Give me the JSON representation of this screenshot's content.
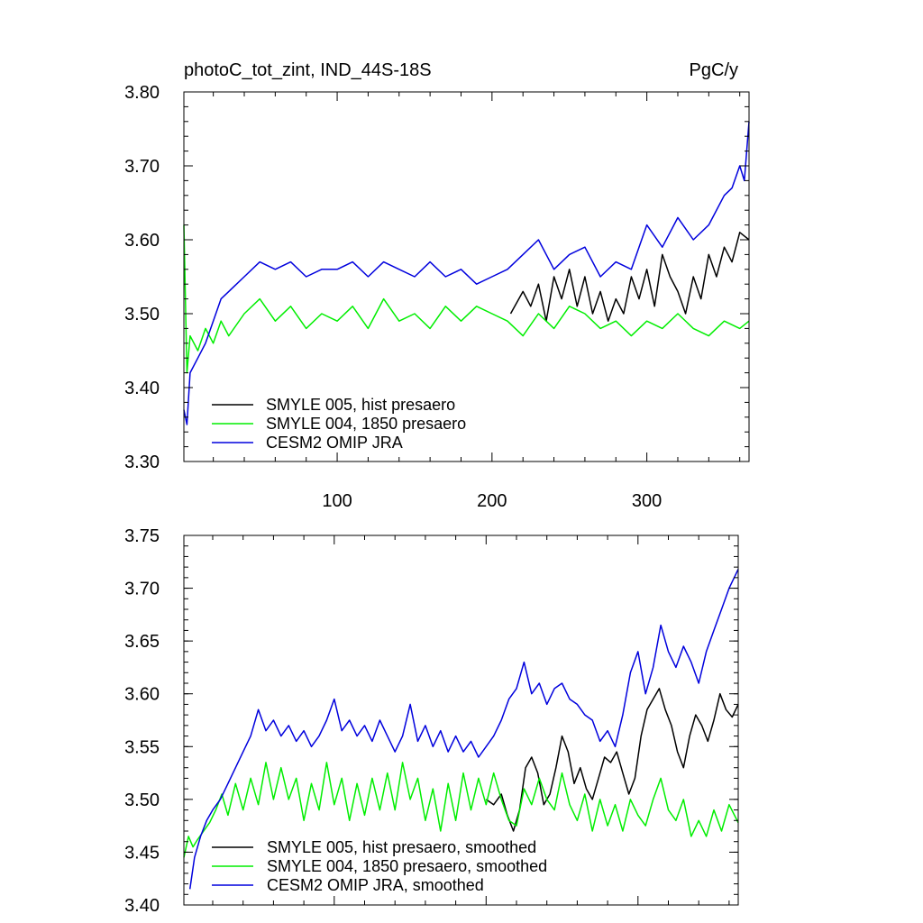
{
  "chart_data": [
    {
      "type": "line",
      "title": "photoC_tot_zint, IND_44S-18S",
      "units": "PgC/y",
      "xlim": [
        1,
        366
      ],
      "ylim": [
        3.3,
        3.8
      ],
      "yticks": [
        "3.30",
        "3.40",
        "3.50",
        "3.60",
        "3.70",
        "3.80"
      ],
      "xticks": [
        "100",
        "200",
        "300"
      ],
      "grid": false,
      "legend_position": "bottom-left",
      "series": [
        {
          "name": "SMYLE 005, hist presaero",
          "color": "#000000",
          "x": [
            212,
            220,
            225,
            230,
            235,
            240,
            245,
            250,
            255,
            260,
            265,
            270,
            275,
            280,
            285,
            290,
            295,
            300,
            305,
            310,
            315,
            320,
            325,
            330,
            335,
            340,
            345,
            350,
            355,
            360,
            366
          ],
          "y": [
            3.5,
            3.53,
            3.51,
            3.54,
            3.49,
            3.55,
            3.52,
            3.56,
            3.51,
            3.55,
            3.5,
            3.53,
            3.49,
            3.52,
            3.5,
            3.55,
            3.52,
            3.56,
            3.51,
            3.58,
            3.55,
            3.53,
            3.5,
            3.55,
            3.52,
            3.58,
            3.55,
            3.59,
            3.57,
            3.61,
            3.6
          ]
        },
        {
          "name": "SMYLE 004, 1850 presaero",
          "color": "#00ee00",
          "x": [
            1,
            3,
            5,
            10,
            15,
            20,
            25,
            30,
            40,
            50,
            60,
            70,
            80,
            90,
            100,
            110,
            120,
            130,
            140,
            150,
            160,
            170,
            180,
            190,
            200,
            210,
            220,
            230,
            240,
            250,
            260,
            270,
            280,
            290,
            300,
            310,
            320,
            330,
            340,
            350,
            360,
            366
          ],
          "y": [
            3.62,
            3.42,
            3.47,
            3.45,
            3.48,
            3.46,
            3.49,
            3.47,
            3.5,
            3.52,
            3.49,
            3.51,
            3.48,
            3.5,
            3.49,
            3.51,
            3.48,
            3.52,
            3.49,
            3.5,
            3.48,
            3.51,
            3.49,
            3.51,
            3.5,
            3.49,
            3.47,
            3.5,
            3.48,
            3.51,
            3.5,
            3.48,
            3.49,
            3.47,
            3.49,
            3.48,
            3.5,
            3.48,
            3.47,
            3.49,
            3.48,
            3.49
          ]
        },
        {
          "name": "CESM2 OMIP JRA",
          "color": "#0000dd",
          "x": [
            1,
            3,
            5,
            10,
            15,
            20,
            25,
            30,
            40,
            50,
            60,
            70,
            80,
            90,
            100,
            110,
            120,
            130,
            140,
            150,
            160,
            170,
            180,
            190,
            200,
            210,
            220,
            230,
            240,
            250,
            260,
            270,
            280,
            290,
            300,
            310,
            320,
            330,
            340,
            350,
            355,
            360,
            363,
            366
          ],
          "y": [
            3.37,
            3.35,
            3.42,
            3.44,
            3.46,
            3.49,
            3.52,
            3.53,
            3.55,
            3.57,
            3.56,
            3.57,
            3.55,
            3.56,
            3.56,
            3.57,
            3.55,
            3.57,
            3.56,
            3.55,
            3.57,
            3.55,
            3.56,
            3.54,
            3.55,
            3.56,
            3.58,
            3.6,
            3.56,
            3.58,
            3.59,
            3.55,
            3.57,
            3.56,
            3.62,
            3.59,
            3.63,
            3.6,
            3.62,
            3.66,
            3.67,
            3.7,
            3.68,
            3.76
          ]
        }
      ]
    },
    {
      "type": "line",
      "title": "",
      "units": "",
      "xlim": [
        1,
        366
      ],
      "ylim": [
        3.4,
        3.75
      ],
      "yticks": [
        "3.40",
        "3.45",
        "3.50",
        "3.55",
        "3.60",
        "3.65",
        "3.70",
        "3.75"
      ],
      "xticks": [],
      "grid": false,
      "legend_position": "bottom-left",
      "series": [
        {
          "name": "SMYLE 005, hist presaero, smoothed",
          "color": "#000000",
          "x": [
            200,
            205,
            210,
            214,
            218,
            222,
            226,
            230,
            234,
            238,
            242,
            246,
            250,
            254,
            258,
            262,
            266,
            270,
            274,
            278,
            282,
            286,
            290,
            294,
            298,
            302,
            306,
            310,
            314,
            318,
            322,
            326,
            330,
            334,
            338,
            342,
            346,
            350,
            354,
            358,
            362,
            366
          ],
          "y": [
            3.5,
            3.495,
            3.505,
            3.485,
            3.47,
            3.49,
            3.53,
            3.54,
            3.525,
            3.495,
            3.505,
            3.53,
            3.56,
            3.545,
            3.515,
            3.53,
            3.51,
            3.5,
            3.52,
            3.54,
            3.535,
            3.545,
            3.525,
            3.505,
            3.52,
            3.56,
            3.585,
            3.595,
            3.605,
            3.585,
            3.57,
            3.545,
            3.53,
            3.56,
            3.58,
            3.57,
            3.555,
            3.575,
            3.6,
            3.585,
            3.578,
            3.59
          ]
        },
        {
          "name": "SMYLE 004, 1850 presaero, smoothed",
          "color": "#00ee00",
          "x": [
            1,
            4,
            7,
            10,
            14,
            18,
            22,
            26,
            30,
            35,
            40,
            45,
            50,
            55,
            60,
            65,
            70,
            75,
            80,
            85,
            90,
            95,
            100,
            105,
            110,
            115,
            120,
            125,
            130,
            135,
            140,
            145,
            150,
            155,
            160,
            165,
            170,
            175,
            180,
            185,
            190,
            195,
            200,
            205,
            210,
            215,
            220,
            225,
            230,
            235,
            240,
            245,
            250,
            255,
            260,
            265,
            270,
            275,
            280,
            285,
            290,
            295,
            300,
            305,
            310,
            315,
            320,
            325,
            330,
            335,
            340,
            345,
            350,
            355,
            360,
            366
          ],
          "y": [
            3.445,
            3.465,
            3.455,
            3.462,
            3.47,
            3.478,
            3.49,
            3.505,
            3.485,
            3.515,
            3.49,
            3.52,
            3.495,
            3.535,
            3.5,
            3.53,
            3.5,
            3.52,
            3.48,
            3.515,
            3.49,
            3.535,
            3.495,
            3.52,
            3.48,
            3.515,
            3.485,
            3.52,
            3.49,
            3.525,
            3.49,
            3.535,
            3.5,
            3.52,
            3.48,
            3.51,
            3.47,
            3.515,
            3.48,
            3.525,
            3.49,
            3.52,
            3.495,
            3.525,
            3.5,
            3.48,
            3.475,
            3.51,
            3.495,
            3.52,
            3.5,
            3.49,
            3.525,
            3.495,
            3.48,
            3.505,
            3.47,
            3.5,
            3.475,
            3.495,
            3.47,
            3.5,
            3.485,
            3.475,
            3.5,
            3.52,
            3.49,
            3.48,
            3.5,
            3.465,
            3.48,
            3.465,
            3.49,
            3.47,
            3.495,
            3.478
          ]
        },
        {
          "name": "CESM2 OMIP JRA, smoothed",
          "color": "#0000dd",
          "x": [
            5,
            8,
            12,
            16,
            20,
            25,
            30,
            35,
            40,
            45,
            50,
            55,
            60,
            65,
            70,
            75,
            80,
            85,
            90,
            95,
            100,
            105,
            110,
            115,
            120,
            125,
            130,
            135,
            140,
            145,
            150,
            155,
            160,
            165,
            170,
            175,
            180,
            185,
            190,
            195,
            200,
            205,
            210,
            215,
            220,
            225,
            230,
            235,
            240,
            245,
            250,
            255,
            260,
            265,
            270,
            275,
            280,
            285,
            290,
            295,
            300,
            305,
            310,
            315,
            320,
            325,
            330,
            335,
            340,
            345,
            350,
            355,
            360,
            366
          ],
          "y": [
            3.415,
            3.445,
            3.465,
            3.48,
            3.49,
            3.5,
            3.515,
            3.53,
            3.545,
            3.56,
            3.585,
            3.565,
            3.575,
            3.56,
            3.57,
            3.555,
            3.565,
            3.55,
            3.56,
            3.575,
            3.595,
            3.565,
            3.575,
            3.56,
            3.57,
            3.555,
            3.575,
            3.56,
            3.545,
            3.56,
            3.59,
            3.555,
            3.57,
            3.55,
            3.565,
            3.545,
            3.56,
            3.545,
            3.555,
            3.54,
            3.55,
            3.56,
            3.575,
            3.595,
            3.605,
            3.63,
            3.6,
            3.61,
            3.59,
            3.605,
            3.61,
            3.595,
            3.59,
            3.58,
            3.575,
            3.555,
            3.565,
            3.55,
            3.58,
            3.62,
            3.64,
            3.6,
            3.625,
            3.665,
            3.64,
            3.625,
            3.645,
            3.63,
            3.61,
            3.64,
            3.66,
            3.68,
            3.7,
            3.718
          ]
        }
      ]
    }
  ]
}
